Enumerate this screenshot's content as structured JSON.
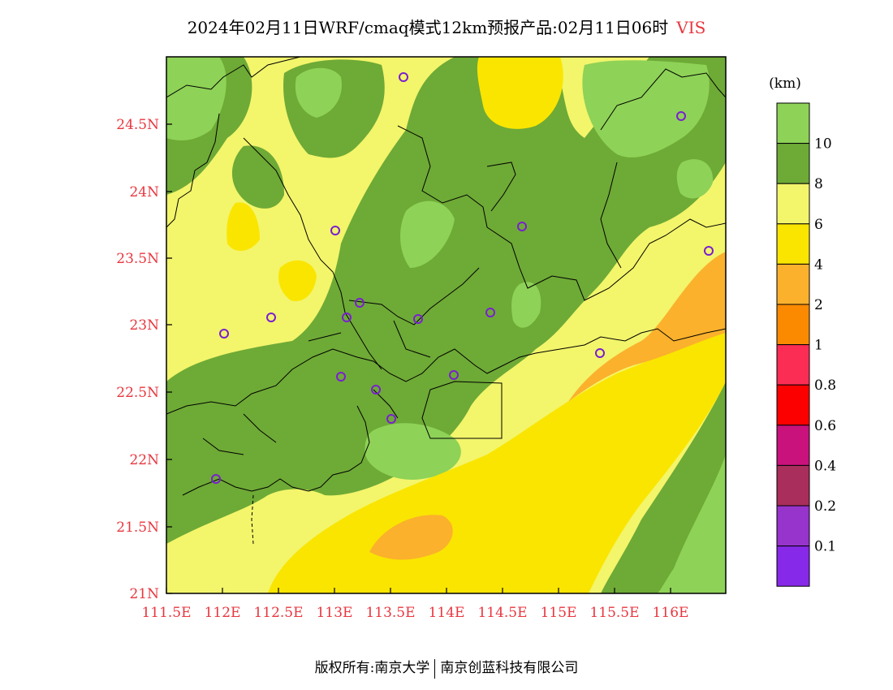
{
  "title": {
    "text": "2024年02月11日WRF/cmaq模式12km预报产品:02月11日06时",
    "variable": "VIS"
  },
  "axes": {
    "x_labels": [
      "111.5E",
      "112E",
      "112.5E",
      "113E",
      "113.5E",
      "114E",
      "114.5E",
      "115E",
      "115.5E",
      "116E"
    ],
    "y_labels": [
      "24.5N",
      "24N",
      "23.5N",
      "23N",
      "22.5N",
      "22N",
      "21.5N",
      "21N"
    ]
  },
  "legend": {
    "unit": "(km)",
    "levels": [
      {
        "label": "",
        "color": "#8ed257"
      },
      {
        "label": "10",
        "color": "#6eaa36"
      },
      {
        "label": "8",
        "color": "#f3f56b"
      },
      {
        "label": "6",
        "color": "#fae500"
      },
      {
        "label": "4",
        "color": "#fbb12c"
      },
      {
        "label": "2",
        "color": "#fb8a00"
      },
      {
        "label": "1",
        "color": "#fc2d55"
      },
      {
        "label": "0.8",
        "color": "#fc0000"
      },
      {
        "label": "0.6",
        "color": "#c9127c"
      },
      {
        "label": "0.4",
        "color": "#a92e5c"
      },
      {
        "label": "0.2",
        "color": "#9734cc"
      },
      {
        "label": "0.1",
        "color": "#8729e8"
      }
    ]
  },
  "footer": {
    "left": "版权所有:南京大学",
    "right": "南京创蓝科技有限公司"
  },
  "colors": {
    "tick": "#e8373f",
    "station": "#7a1fd0"
  }
}
